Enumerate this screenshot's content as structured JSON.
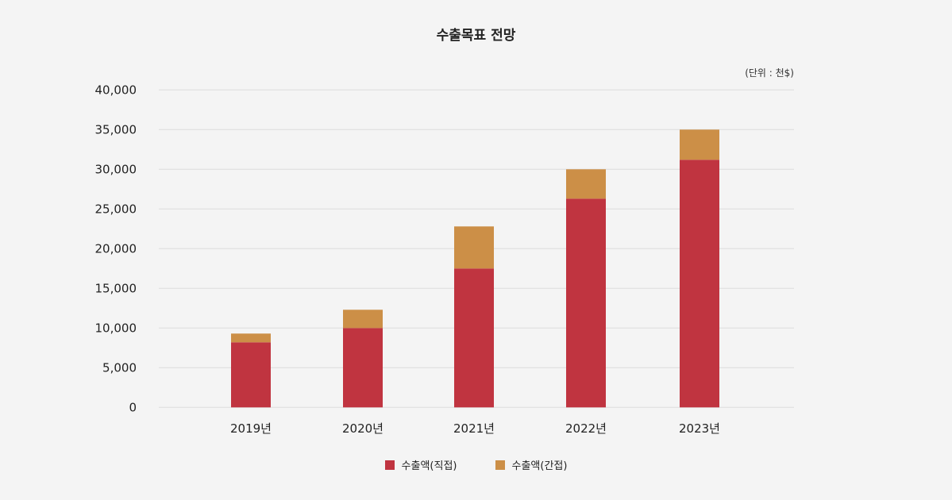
{
  "chart_data": {
    "type": "bar",
    "stacked": true,
    "title": "수출목표 전망",
    "unit_label": "(단위 : 천$)",
    "categories": [
      "2019년",
      "2020년",
      "2021년",
      "2022년",
      "2023년"
    ],
    "series": [
      {
        "name": "수출액(직접)",
        "color": "#c03440",
        "values": [
          8200,
          10000,
          17500,
          26300,
          31200
        ]
      },
      {
        "name": "수출액(간접)",
        "color": "#cc8f47",
        "values": [
          1100,
          2300,
          5300,
          3700,
          3800
        ]
      }
    ],
    "ylim": [
      0,
      40000
    ],
    "yticks": [
      "0",
      "5,000",
      "10,000",
      "15,000",
      "20,000",
      "25,000",
      "30,000",
      "35,000",
      "40,000"
    ],
    "grid": true,
    "legend_position": "bottom"
  }
}
